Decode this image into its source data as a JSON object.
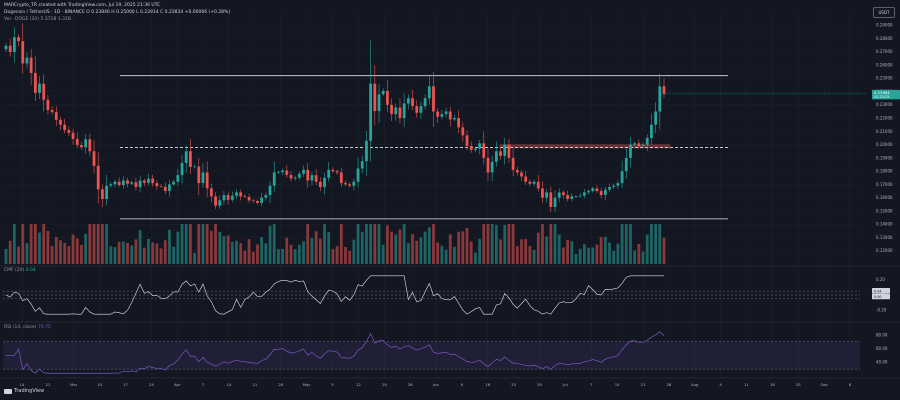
{
  "header": {
    "publish_line": "MARCrypto_TR created with TradingView.com, Jul 19, 2025 21:36 UTC",
    "symbol_line": "Dogecoin / TetherUS · 1D · BINANCE  O 0.23846  H 0.25000  L 0.22914  C 0.23834  +0.00066 (+0.28%)",
    "volume_line": "Vol · DOGE  (20)  5.371B  1.31B",
    "quote_currency": "USDT"
  },
  "watermark": "TradingView",
  "colors": {
    "background": "#131722",
    "up": "#26a69a",
    "down": "#ef5350",
    "grid": "#1e222d",
    "level_line": "#e0e3eb",
    "resistance_zone": "#b2474f",
    "rsi_line": "#7e57c2",
    "cmf_line": "#e0e3eb"
  },
  "chart_data": [
    {
      "type": "candlestick",
      "pane": "price",
      "ylim": [
        0.11,
        0.3
      ],
      "price_ticks": [
        "0.29000",
        "0.28000",
        "0.27000",
        "0.26000",
        "0.25000",
        "0.24000",
        "0.23000",
        "0.22000",
        "0.21000",
        "0.20000",
        "0.19000",
        "0.18000",
        "0.17000",
        "0.16000",
        "0.15000",
        "0.14000",
        "0.13000",
        "0.12000"
      ],
      "current_price_label": "0.23864",
      "current_countdown_label": "02:23:25",
      "time_axis_labels": [
        "14",
        "21",
        "Mar",
        "10",
        "17",
        "24",
        "Apr",
        "7",
        "14",
        "21",
        "28",
        "May",
        "5",
        "12",
        "19",
        "26",
        "Jun",
        "9",
        "16",
        "23",
        "30",
        "Jul",
        "7",
        "14",
        "21",
        "28",
        "Aug",
        "4",
        "11",
        "18",
        "25",
        "Sep",
        "8"
      ],
      "closes": [
        0.2746,
        0.2698,
        0.281,
        0.278,
        0.2612,
        0.2656,
        0.254,
        0.239,
        0.246,
        0.2338,
        0.2261,
        0.2245,
        0.2187,
        0.215,
        0.211,
        0.2089,
        0.2043,
        0.1997,
        0.198,
        0.204,
        0.195,
        0.184,
        0.1663,
        0.159,
        0.169,
        0.1701,
        0.172,
        0.1695,
        0.173,
        0.1705,
        0.1716,
        0.168,
        0.173,
        0.1712,
        0.1744,
        0.171,
        0.1687,
        0.1683,
        0.165,
        0.17,
        0.172,
        0.177,
        0.1862,
        0.195,
        0.1832,
        0.1835,
        0.171,
        0.179,
        0.167,
        0.161,
        0.154,
        0.158,
        0.162,
        0.1584,
        0.1614,
        0.164,
        0.161,
        0.1605,
        0.158,
        0.1575,
        0.156,
        0.16,
        0.162,
        0.169,
        0.179,
        0.1792,
        0.1805,
        0.1771,
        0.1745,
        0.1752,
        0.178,
        0.181,
        0.173,
        0.177,
        0.172,
        0.168,
        0.175,
        0.181,
        0.18,
        0.179,
        0.171,
        0.17,
        0.169,
        0.172,
        0.182,
        0.1875,
        0.2029,
        0.246,
        0.2253,
        0.238,
        0.2405,
        0.23,
        0.223,
        0.228,
        0.22,
        0.231,
        0.235,
        0.229,
        0.224,
        0.229,
        0.235,
        0.244,
        0.225,
        0.221,
        0.223,
        0.225,
        0.219,
        0.22,
        0.213,
        0.207,
        0.199,
        0.196,
        0.197,
        0.201,
        0.19,
        0.179,
        0.187,
        0.195,
        0.1915,
        0.2,
        0.19,
        0.181,
        0.179,
        0.176,
        0.172,
        0.1705,
        0.172,
        0.167,
        0.16,
        0.164,
        0.153,
        0.16,
        0.164,
        0.162,
        0.159,
        0.161,
        0.161,
        0.1615,
        0.164,
        0.165,
        0.167,
        0.165,
        0.162,
        0.166,
        0.168,
        0.169,
        0.171,
        0.18,
        0.19,
        0.2,
        0.201,
        0.199,
        0.2,
        0.205,
        0.215,
        0.225,
        0.244,
        0.2383
      ],
      "levels": [
        {
          "price": 0.252,
          "style": "solid"
        },
        {
          "price": 0.1978,
          "style": "dashed"
        },
        {
          "price": 0.144,
          "style": "solid"
        }
      ],
      "zone": {
        "low": 0.1975,
        "high": 0.2
      },
      "volume_axis_max": 5.4
    },
    {
      "type": "line",
      "pane": "cmf",
      "title": "CMF (20)",
      "value_label": "0.04",
      "ylim": [
        -0.3,
        0.3
      ],
      "ticks": [
        "0.20",
        "0.00",
        "-0.20"
      ],
      "right_tags": [
        "0.04",
        "0.00"
      ],
      "levels": [
        0.05,
        0.0,
        -0.05
      ]
    },
    {
      "type": "line",
      "pane": "rsi",
      "title": "RSI (14, close)",
      "value_label": "79.75",
      "ylim": [
        20,
        90
      ],
      "ticks": [
        "80.00",
        "60.00",
        "40.00"
      ],
      "band": [
        30,
        70
      ]
    }
  ]
}
